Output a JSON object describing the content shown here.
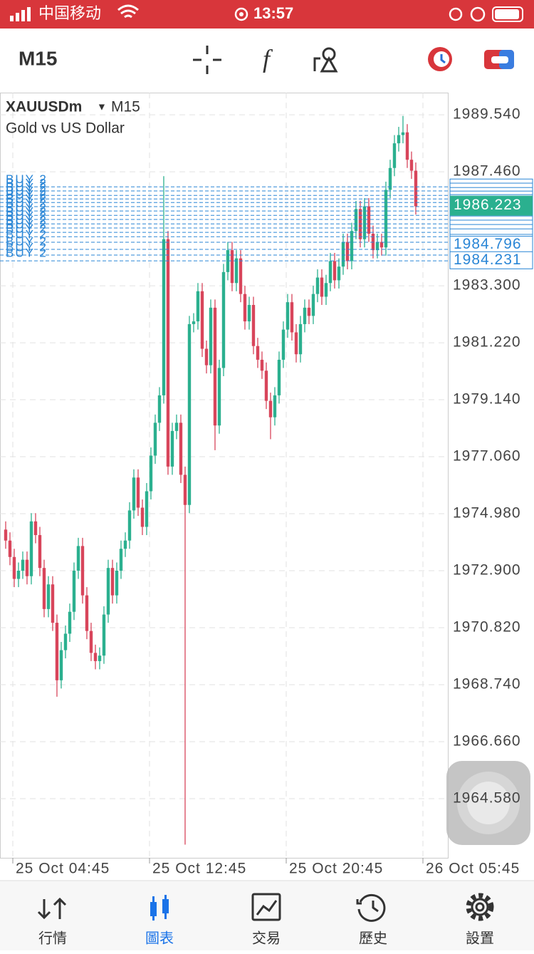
{
  "status_bar": {
    "carrier": "中国移动",
    "time": "13:57"
  },
  "toolbar": {
    "timeframe": "M15"
  },
  "chart_data": {
    "type": "candlestick",
    "symbol": "XAUUSDm",
    "timeframe": "M15",
    "description": "Gold vs US Dollar",
    "categories": [
      null,
      null,
      null,
      null,
      null,
      null,
      null,
      null,
      null,
      null,
      null,
      null,
      null,
      null,
      null,
      null,
      null,
      null,
      null,
      null,
      null,
      null,
      null,
      null,
      null,
      null,
      null,
      null,
      null,
      null,
      null,
      null,
      null,
      null,
      null,
      null,
      null,
      null,
      null,
      null,
      null,
      null,
      null,
      null,
      null,
      null,
      null,
      null,
      null,
      null,
      null,
      null,
      null,
      null,
      null,
      null,
      null,
      null,
      null,
      null,
      null,
      null,
      null,
      null,
      null,
      null,
      null,
      null,
      null,
      null,
      null,
      null,
      null,
      null,
      null,
      null,
      null,
      null,
      null,
      null,
      null,
      null,
      null,
      null,
      null,
      null,
      null,
      null,
      null,
      null,
      null,
      null,
      null,
      null,
      null,
      null,
      null
    ],
    "open": [
      1974.4,
      1974.0,
      1973.4,
      1972.6,
      1972.9,
      1973.3,
      1972.7,
      1974.7,
      1974.2,
      1973.0,
      1971.5,
      1972.4,
      1971.0,
      1968.9,
      1970.0,
      1970.6,
      1971.4,
      1972.9,
      1973.8,
      1972.0,
      1970.7,
      1969.9,
      1969.6,
      1969.8,
      1971.3,
      1973.0,
      1972.0,
      1972.9,
      1973.7,
      1974.0,
      1975.1,
      1976.3,
      1975.2,
      1974.5,
      1975.8,
      1977.1,
      1978.3,
      1979.3,
      1985.0,
      1976.7,
      1978.0,
      1978.3,
      1976.4,
      1975.3,
      1981.9,
      1982.0,
      1983.1,
      1981.0,
      1980.4,
      1982.5,
      1978.2,
      1980.3,
      1983.8,
      1984.6,
      1983.4,
      1984.3,
      1983.0,
      1982.0,
      1982.6,
      1981.1,
      1980.6,
      1980.2,
      1979.1,
      1978.5,
      1979.3,
      1980.6,
      1981.7,
      1982.7,
      1981.6,
      1980.8,
      1981.9,
      1982.5,
      1982.2,
      1983.0,
      1983.6,
      1982.9,
      1983.4,
      1984.2,
      1983.5,
      1984.0,
      1984.9,
      1984.2,
      1985.3,
      1986.1,
      1985.0,
      1986.2,
      1985.2,
      1984.6,
      1984.9,
      1984.7,
      1986.8,
      1987.6,
      1988.5,
      1988.8,
      1988.9,
      1987.9,
      1987.5
    ],
    "high": [
      1974.7,
      1974.3,
      1973.7,
      1973.2,
      1973.6,
      1973.6,
      1975.0,
      1975.0,
      1974.5,
      1973.3,
      1972.7,
      1972.7,
      1971.3,
      1970.3,
      1970.9,
      1971.7,
      1973.2,
      1974.1,
      1974.1,
      1972.3,
      1971.0,
      1970.2,
      1970.1,
      1971.6,
      1973.3,
      1973.3,
      1973.2,
      1974.0,
      1974.3,
      1975.4,
      1976.6,
      1976.6,
      1975.5,
      1976.1,
      1977.4,
      1978.6,
      1979.6,
      1987.3,
      1985.3,
      1978.3,
      1978.6,
      1978.6,
      1976.7,
      1982.2,
      1982.3,
      1983.4,
      1983.4,
      1981.3,
      1982.8,
      1982.8,
      1980.6,
      1984.1,
      1984.9,
      1984.9,
      1984.6,
      1984.6,
      1983.3,
      1982.9,
      1982.9,
      1981.4,
      1980.9,
      1980.5,
      1979.4,
      1979.6,
      1980.9,
      1982.0,
      1983.0,
      1983.0,
      1981.9,
      1982.2,
      1982.8,
      1982.8,
      1983.3,
      1983.9,
      1983.9,
      1983.7,
      1984.5,
      1984.5,
      1984.3,
      1985.2,
      1985.2,
      1985.6,
      1986.4,
      1986.4,
      1986.5,
      1986.5,
      1985.5,
      1985.2,
      1985.2,
      1987.1,
      1987.9,
      1988.8,
      1989.1,
      1989.5,
      1989.2,
      1988.2,
      1987.8
    ],
    "low": [
      1973.7,
      1973.1,
      1972.3,
      1972.3,
      1972.6,
      1972.4,
      1972.4,
      1973.9,
      1972.7,
      1971.2,
      1971.2,
      1970.7,
      1968.3,
      1968.6,
      1969.7,
      1970.3,
      1971.1,
      1972.6,
      1971.7,
      1970.4,
      1969.6,
      1969.3,
      1969.3,
      1969.5,
      1971.0,
      1971.7,
      1971.7,
      1972.6,
      1973.4,
      1973.7,
      1974.8,
      1974.9,
      1974.2,
      1974.2,
      1975.5,
      1976.8,
      1978.0,
      1979.0,
      1976.4,
      1976.4,
      1977.7,
      1976.1,
      1962.9,
      1975.0,
      1981.6,
      1981.7,
      1980.7,
      1980.1,
      1980.1,
      1977.3,
      1977.9,
      1980.0,
      1983.5,
      1983.1,
      1983.1,
      1982.7,
      1981.7,
      1981.7,
      1980.8,
      1980.3,
      1979.9,
      1978.8,
      1977.7,
      1978.2,
      1979.0,
      1980.3,
      1981.4,
      1981.3,
      1980.5,
      1980.5,
      1981.6,
      1981.9,
      1981.9,
      1982.7,
      1982.6,
      1982.6,
      1983.1,
      1983.2,
      1983.2,
      1983.7,
      1983.9,
      1983.9,
      1985.0,
      1984.7,
      1984.7,
      1984.9,
      1984.3,
      1984.3,
      1984.4,
      1984.4,
      1986.5,
      1987.3,
      1988.2,
      1988.5,
      1987.6,
      1987.2,
      1985.9
    ],
    "close": [
      1974.0,
      1973.4,
      1972.6,
      1972.9,
      1973.3,
      1972.7,
      1974.7,
      1974.2,
      1973.0,
      1971.5,
      1972.4,
      1971.0,
      1968.9,
      1970.0,
      1970.6,
      1971.4,
      1972.9,
      1973.8,
      1972.0,
      1970.7,
      1969.9,
      1969.6,
      1969.8,
      1971.3,
      1973.0,
      1972.0,
      1972.9,
      1973.7,
      1974.0,
      1975.1,
      1976.3,
      1975.2,
      1974.5,
      1975.8,
      1977.1,
      1978.3,
      1979.3,
      1985.0,
      1976.7,
      1978.0,
      1978.3,
      1976.4,
      1975.3,
      1981.9,
      1982.0,
      1983.1,
      1981.0,
      1980.4,
      1982.5,
      1978.2,
      1980.3,
      1983.8,
      1984.6,
      1983.4,
      1984.3,
      1983.0,
      1982.0,
      1982.6,
      1981.1,
      1980.6,
      1980.2,
      1979.1,
      1978.5,
      1979.3,
      1980.6,
      1981.7,
      1982.7,
      1981.6,
      1980.8,
      1981.9,
      1982.5,
      1982.2,
      1983.0,
      1983.6,
      1982.9,
      1983.4,
      1984.2,
      1983.5,
      1984.0,
      1984.9,
      1984.2,
      1985.3,
      1986.1,
      1985.0,
      1986.2,
      1985.2,
      1984.6,
      1984.9,
      1984.7,
      1986.8,
      1987.6,
      1988.5,
      1988.8,
      1988.9,
      1987.9,
      1987.5,
      1986.2
    ],
    "up_color": "#2bb08f",
    "down_color": "#d8455b",
    "ylim": [
      1962.42,
      1990.35
    ],
    "yticks": [
      {
        "value": 1989.54,
        "label": "1989.540"
      },
      {
        "value": 1987.46,
        "label": "1987.460"
      },
      {
        "value": 1983.3,
        "label": "1983.300"
      },
      {
        "value": 1981.22,
        "label": "1981.220"
      },
      {
        "value": 1979.14,
        "label": "1979.140"
      },
      {
        "value": 1977.06,
        "label": "1977.060"
      },
      {
        "value": 1974.98,
        "label": "1974.980"
      },
      {
        "value": 1972.9,
        "label": "1972.900"
      },
      {
        "value": 1970.82,
        "label": "1970.820"
      },
      {
        "value": 1968.74,
        "label": "1968.740"
      },
      {
        "value": 1966.66,
        "label": "1966.660"
      },
      {
        "value": 1964.58,
        "label": "1964.580"
      }
    ],
    "xlim": [
      -1.33,
      103.67
    ],
    "xticks": [
      {
        "value": 1.67,
        "label": "25 Oct 04:45"
      },
      {
        "value": 33.67,
        "label": "25 Oct 12:45"
      },
      {
        "value": 65.67,
        "label": "25 Oct 20:45"
      },
      {
        "value": 97.67,
        "label": "26 Oct 05:45"
      }
    ],
    "grid": true,
    "orders": {
      "label": "BUY 2",
      "color": "#2a86d6",
      "prices": [
        1986.91,
        1986.76,
        1986.6,
        1986.47,
        1986.34,
        1986.19,
        1986.03,
        1985.87,
        1985.72,
        1985.56,
        1985.41,
        1985.25,
        1985.09,
        1984.89,
        1984.63,
        1984.42,
        1984.21
      ]
    },
    "current_price": 1986.223,
    "price_tags": [
      1984.796,
      1984.231
    ]
  },
  "nav": [
    "行情",
    "圖表",
    "交易",
    "歷史",
    "設置"
  ]
}
